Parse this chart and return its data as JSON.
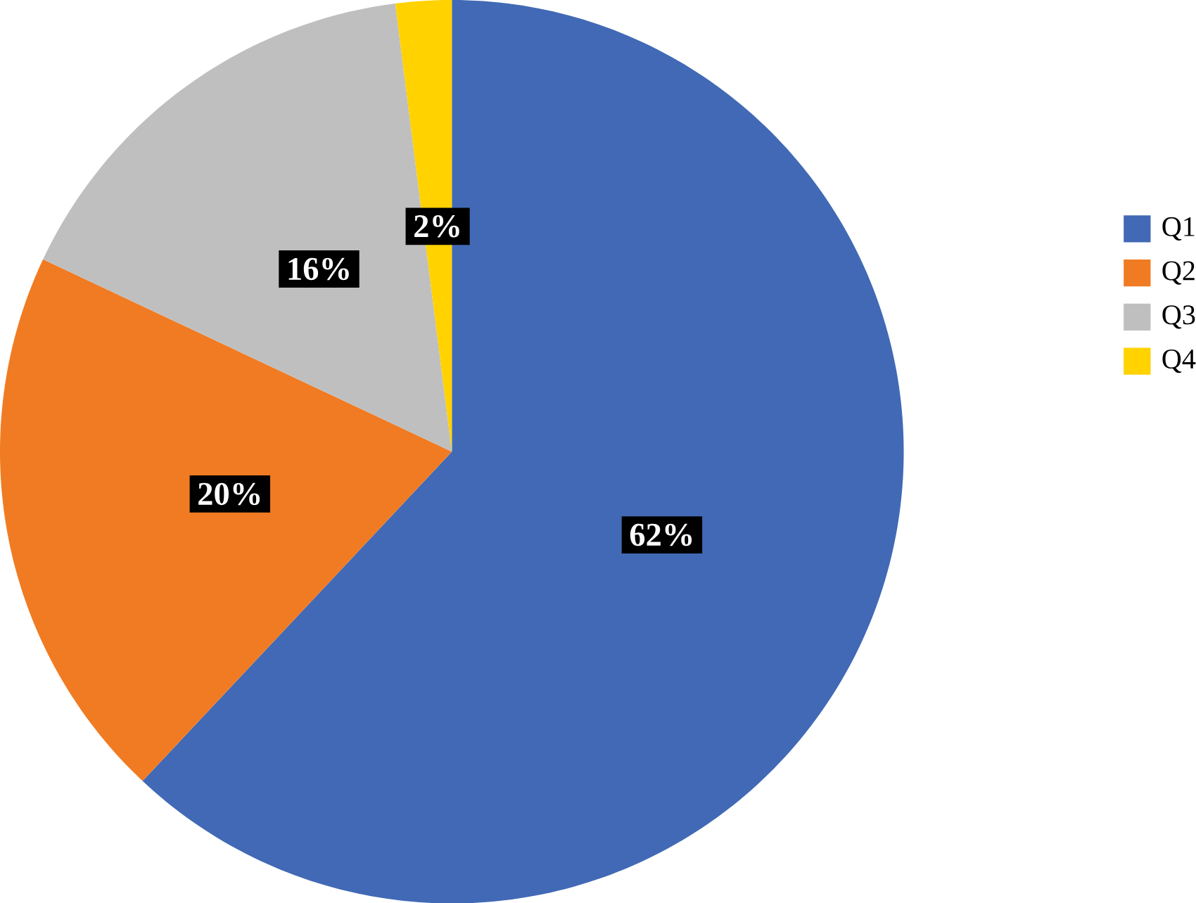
{
  "chart_data": {
    "type": "pie",
    "categories": [
      "Q1",
      "Q2",
      "Q3",
      "Q4"
    ],
    "values": [
      62,
      20,
      16,
      2
    ],
    "value_labels": [
      "62%",
      "20%",
      "16%",
      "2%"
    ],
    "colors": [
      "#4169b5",
      "#f07b22",
      "#bfbfbf",
      "#ffd200"
    ],
    "legend": "right"
  }
}
